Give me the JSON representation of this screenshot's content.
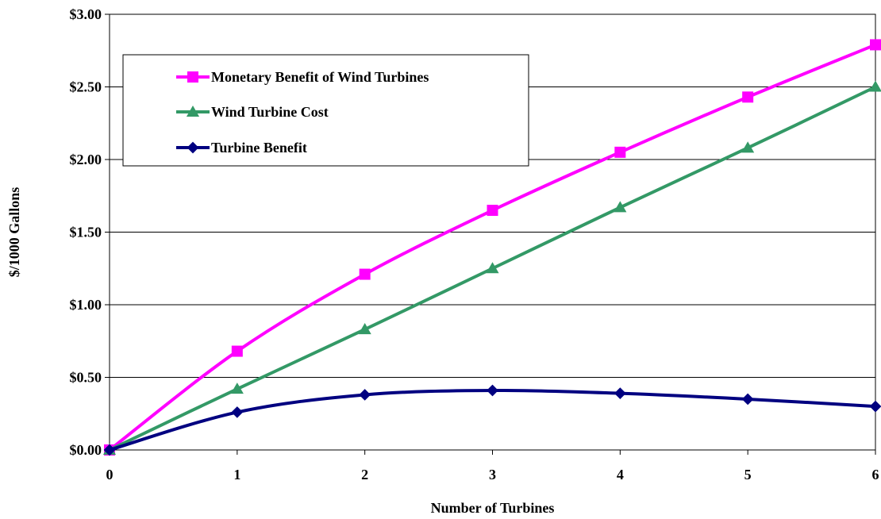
{
  "chart_data": {
    "type": "line",
    "title": "",
    "xlabel": "Number of Turbines",
    "ylabel": "$/1000 Gallons",
    "x": [
      0,
      1,
      2,
      3,
      4,
      5,
      6
    ],
    "xlim": [
      0,
      6
    ],
    "ylim": [
      0,
      3
    ],
    "x_tick_labels": [
      "0",
      "1",
      "2",
      "3",
      "4",
      "5",
      "6"
    ],
    "y_ticks": [
      0,
      0.5,
      1,
      1.5,
      2,
      2.5,
      3
    ],
    "y_tick_labels": [
      "$0.00",
      "$0.50",
      "$1.00",
      "$1.50",
      "$2.00",
      "$2.50",
      "$3.00"
    ],
    "grid": "horizontal",
    "legend_position": "top-left",
    "series": [
      {
        "name": "Monetary Benefit of Wind Turbines",
        "color": "#ff00ff",
        "marker": "square",
        "values": [
          0,
          0.68,
          1.21,
          1.65,
          2.05,
          2.43,
          2.79
        ]
      },
      {
        "name": "Wind Turbine Cost",
        "color": "#339966",
        "marker": "triangle",
        "values": [
          0,
          0.42,
          0.83,
          1.25,
          1.67,
          2.08,
          2.5
        ]
      },
      {
        "name": "Turbine Benefit",
        "color": "#000080",
        "marker": "diamond",
        "values": [
          0,
          0.26,
          0.38,
          0.41,
          0.39,
          0.35,
          0.3
        ]
      }
    ]
  }
}
